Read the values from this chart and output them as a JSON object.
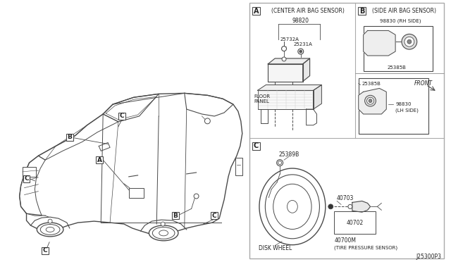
{
  "bg_color": "#ffffff",
  "line_color": "#4a4a4a",
  "border_color": "#666666",
  "text_color": "#222222",
  "fig_width": 6.4,
  "fig_height": 3.72,
  "dpi": 100,
  "section_A_label": "A",
  "section_A_title": "(CENTER AIR BAG SENSOR)",
  "section_B_label": "B",
  "section_B_title": "(SIDE AIR BAG SENSOR)",
  "section_C_label": "C",
  "part_98820": "98820",
  "part_25732A": "25732A",
  "part_25231A": "25231A",
  "floor_panel": "FLOOR\nPANEL",
  "part_98830_rh": "98830 (RH SIDE)",
  "part_25385B": "25385B",
  "front_label": "FRONT",
  "part_98830_lh": "98830\n(LH SIDE)",
  "part_25389B": "25389B",
  "part_40703": "40703",
  "part_40702": "40702",
  "disk_wheel": "DISK WHEEL",
  "part_40700M": "40700M",
  "tire_pressure": "(TIRE PRESSURE SENSOR)",
  "part_number_ref": "J25300P3",
  "callout_A": "A",
  "callout_B": "B",
  "callout_C": "C"
}
